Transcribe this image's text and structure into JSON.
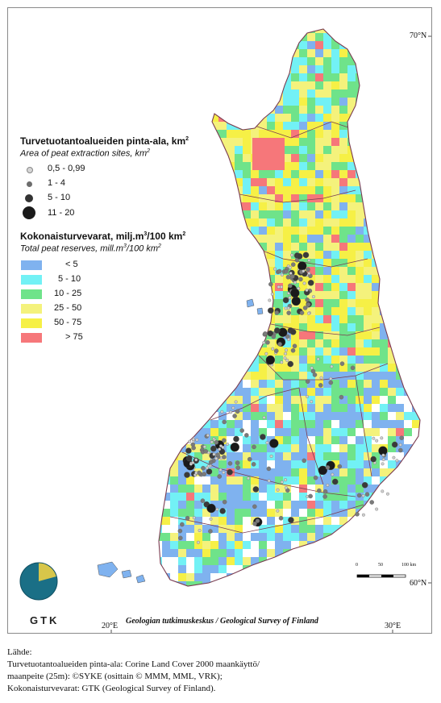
{
  "legend_area": {
    "title": "Turvetuotantoalueiden pinta-ala, km",
    "title_sup": "2",
    "subtitle": "Area of peat extraction sites, km",
    "subtitle_sup": "2",
    "classes": [
      {
        "label": "0,5 - 0,99",
        "color": "#c9c9c9"
      },
      {
        "label": "1 - 4",
        "color": "#6d6d6d"
      },
      {
        "label": "5 - 10",
        "color": "#333333"
      },
      {
        "label": "11 - 20",
        "color": "#1a1a1a"
      }
    ]
  },
  "legend_reserves": {
    "title_a": "Kokonaisturvevarat, milj.m",
    "title_sup1": "3",
    "title_b": "/100 km",
    "title_sup2": "2",
    "subtitle_a": "Total peat reserves, mill.m",
    "subtitle_sup1": "3",
    "subtitle_b": "/100 km",
    "subtitle_sup2": "2",
    "classes": [
      {
        "label": "< 5",
        "color": "#7fb2ef"
      },
      {
        "label": "5 - 10",
        "color": "#72f1f5"
      },
      {
        "label": "10 - 25",
        "color": "#6fe38a"
      },
      {
        "label": "25 - 50",
        "color": "#f4f27c"
      },
      {
        "label": "50 - 75",
        "color": "#f6f046"
      },
      {
        "label": "> 75",
        "color": "#f6777a"
      }
    ]
  },
  "graticule": {
    "lat_top": "70°N",
    "lat_bottom": "60°N",
    "lon_left": "20°E",
    "lon_right": "30°E"
  },
  "scale_bar": {
    "labels": [
      "0",
      "50",
      "100 km"
    ]
  },
  "logo": {
    "text": "GTK"
  },
  "caption": "Geologian tutkimuskeskus / Geological Survey of Finland",
  "source": {
    "heading": "Lähde:",
    "lines": [
      "Turvetuotantoalueiden pinta-ala: Corine Land Cover 2000 maankäyttö/",
      "maanpeite (25m): ©SYKE (osittain © MMM, MML, VRK);",
      "Kokonaisturvevarat: GTK (Geological Survey of Finland)."
    ]
  }
}
